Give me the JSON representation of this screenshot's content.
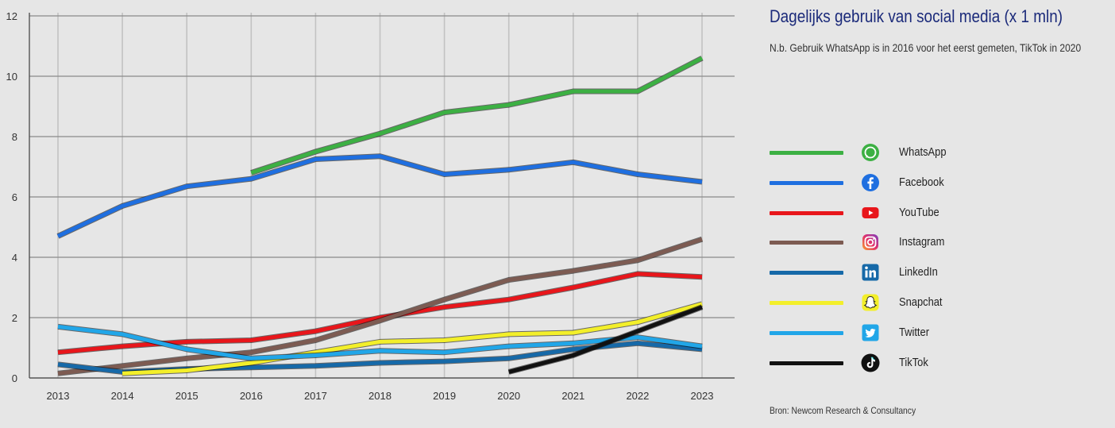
{
  "title": "Dagelijks gebruik van social media (x 1 mln)",
  "subtitle": "N.b. Gebruik WhatsApp is in 2016 voor het eerst gemeten, TikTok in 2020",
  "source": "Bron: Newcom Research & Consultancy",
  "chart_data": {
    "type": "line",
    "title": "Dagelijks gebruik van social media (x 1 mln)",
    "x": [
      2013,
      2014,
      2015,
      2016,
      2017,
      2018,
      2019,
      2020,
      2021,
      2022,
      2023
    ],
    "xlabel": "",
    "ylabel": "",
    "ylim": [
      0,
      12
    ],
    "yticks": [
      0,
      2,
      4,
      6,
      8,
      10,
      12
    ],
    "grid": true,
    "legend_position": "right",
    "series": [
      {
        "name": "WhatsApp",
        "color": "#3cb043",
        "icon": "whatsapp-icon",
        "values": [
          null,
          null,
          null,
          6.8,
          7.5,
          8.1,
          8.8,
          9.05,
          9.5,
          9.5,
          10.6
        ]
      },
      {
        "name": "Facebook",
        "color": "#1f6fe0",
        "icon": "facebook-icon",
        "values": [
          4.7,
          5.7,
          6.35,
          6.6,
          7.25,
          7.35,
          6.75,
          6.9,
          7.15,
          6.75,
          6.5
        ]
      },
      {
        "name": "YouTube",
        "color": "#e8161b",
        "icon": "youtube-icon",
        "values": [
          0.85,
          1.05,
          1.2,
          1.25,
          1.55,
          2.0,
          2.35,
          2.6,
          3.0,
          3.45,
          3.35
        ]
      },
      {
        "name": "Instagram",
        "color": "#7d5b52",
        "icon": "instagram-icon",
        "values": [
          0.15,
          0.4,
          0.65,
          0.85,
          1.25,
          1.9,
          2.6,
          3.25,
          3.55,
          3.9,
          4.6
        ]
      },
      {
        "name": "LinkedIn",
        "color": "#1669a8",
        "icon": "linkedin-icon",
        "values": [
          0.45,
          0.2,
          0.3,
          0.35,
          0.4,
          0.5,
          0.55,
          0.65,
          0.95,
          1.15,
          0.95
        ]
      },
      {
        "name": "Snapchat",
        "color": "#f3ef2a",
        "icon": "snapchat-icon",
        "values": [
          null,
          0.15,
          0.25,
          0.5,
          0.85,
          1.2,
          1.25,
          1.45,
          1.5,
          1.85,
          2.45
        ]
      },
      {
        "name": "Twitter",
        "color": "#21a6e8",
        "icon": "twitter-icon",
        "values": [
          1.7,
          1.45,
          0.95,
          0.65,
          0.75,
          0.9,
          0.85,
          1.05,
          1.15,
          1.35,
          1.05
        ]
      },
      {
        "name": "TikTok",
        "color": "#111111",
        "icon": "tiktok-icon",
        "values": [
          null,
          null,
          null,
          null,
          null,
          null,
          null,
          0.2,
          0.75,
          1.55,
          2.35
        ]
      }
    ]
  }
}
